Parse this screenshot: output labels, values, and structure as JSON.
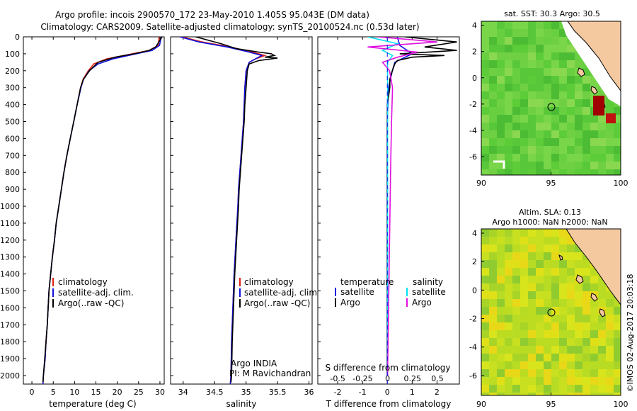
{
  "header": {
    "line1": "Argo profile: incois 2900570_172 23-May-2010 1.405S 95.043E (DM data)",
    "line2": "Climatology: CARS2009. Satellite-adjusted climatology: synTS_20100524.nc (0.53d later)"
  },
  "colors": {
    "clim": "#e02010",
    "sat": "#1010e0",
    "argo": "#000000",
    "sal_sat": "#00e0f0",
    "sal_argo": "#e010e0",
    "land": "#f5c9a0",
    "lowsst": "#a00000"
  },
  "legend1": [
    "climatology",
    "satellite-adj. clim.",
    "Argo(..raw -QC)"
  ],
  "legend2": [
    "climatology",
    "satellite-adj. clim.",
    "Argo(..raw -QC)"
  ],
  "legend3": {
    "temp_head": "temperature",
    "sal_head": "salinity",
    "t_sat": "satellite",
    "t_argo": "Argo",
    "s_sat": "satellite",
    "s_argo": "Argo"
  },
  "annot": {
    "float": "Argo INDIA",
    "pi": "PI: M Ravichandran"
  },
  "map1": {
    "title": "sat. SST: 30.3  Argo: 30.5"
  },
  "map2": {
    "title1": "Altim. SLA: 0.13",
    "title2": "Argo h1000: NaN h2000: NaN"
  },
  "credit": "©IMOS 02-Aug-2017 20:03:18",
  "chart_data": [
    {
      "type": "line",
      "xlabel": "temperature (deg C)",
      "xticks": [
        "0",
        "5",
        "10",
        "15",
        "20",
        "25",
        "30"
      ],
      "xlim": [
        -2,
        31
      ],
      "ylim": [
        2050,
        0
      ],
      "yticks": [
        "0",
        "100",
        "200",
        "300",
        "400",
        "500",
        "600",
        "700",
        "800",
        "900",
        "1000",
        "1100",
        "1200",
        "1300",
        "1400",
        "1500",
        "1600",
        "1700",
        "1800",
        "1900",
        "2000"
      ],
      "series": [
        {
          "name": "climatology",
          "pressure": [
            0,
            50,
            80,
            100,
            130,
            160,
            200,
            250,
            300,
            400,
            500,
            600,
            700,
            800,
            900,
            1000,
            1100,
            1200,
            1300,
            1400,
            1500,
            1600,
            1700,
            1800,
            1900,
            2000,
            2050
          ],
          "values": [
            29.8,
            29.6,
            27.5,
            23.5,
            17.5,
            14.5,
            13.2,
            12.0,
            11.4,
            10.6,
            9.8,
            9.0,
            8.2,
            7.5,
            6.9,
            6.3,
            5.7,
            5.3,
            4.8,
            4.4,
            4.0,
            3.8,
            3.6,
            3.3,
            3.1,
            2.7,
            2.6
          ]
        },
        {
          "name": "satellite-adj. clim.",
          "pressure": [
            0,
            50,
            80,
            100,
            130,
            160,
            200,
            250,
            300,
            400,
            500,
            600,
            700,
            800,
            900,
            1000,
            1100,
            1200,
            1300,
            1400,
            1500,
            1600,
            1700,
            1800,
            1900,
            2000,
            2050
          ],
          "values": [
            30.3,
            29.9,
            28.2,
            24.5,
            19.0,
            15.5,
            13.4,
            12.1,
            11.5,
            10.6,
            9.8,
            9.0,
            8.2,
            7.5,
            6.9,
            6.3,
            5.7,
            5.3,
            4.8,
            4.4,
            4.0,
            3.8,
            3.6,
            3.3,
            3.1,
            2.7,
            2.6
          ]
        },
        {
          "name": "Argo(..raw -QC)",
          "pressure": [
            0,
            20,
            40,
            60,
            80,
            100,
            120,
            150,
            200,
            250,
            300,
            400,
            500,
            600,
            700,
            800,
            900,
            1000,
            1100,
            1200,
            1300,
            1400,
            1500,
            1600,
            1700,
            1800,
            1900,
            2000,
            2040
          ],
          "values": [
            30.5,
            30.0,
            29.5,
            29.0,
            27.5,
            24.0,
            19.5,
            15.5,
            13.5,
            12.1,
            11.4,
            10.6,
            9.8,
            9.0,
            8.2,
            7.5,
            6.9,
            6.3,
            5.7,
            5.3,
            4.8,
            4.4,
            4.0,
            3.8,
            3.6,
            3.3,
            3.0,
            2.7,
            2.6
          ]
        }
      ]
    },
    {
      "type": "line",
      "xlabel": "salinity",
      "xticks": [
        "34",
        "34.5",
        "35",
        "35.5",
        "36"
      ],
      "xlim": [
        33.8,
        36.05
      ],
      "ylim": [
        2050,
        0
      ],
      "series": [
        {
          "name": "climatology",
          "pressure": [
            0,
            30,
            60,
            90,
            110,
            130,
            150,
            200,
            300,
            400,
            500,
            600,
            700,
            800,
            900,
            1000,
            1200,
            1400,
            1600,
            1800,
            2000,
            2050
          ],
          "values": [
            33.98,
            34.3,
            34.75,
            35.1,
            35.3,
            35.15,
            35.05,
            35.0,
            34.98,
            34.97,
            34.96,
            34.94,
            34.92,
            34.9,
            34.88,
            34.87,
            34.84,
            34.81,
            34.79,
            34.77,
            34.76,
            34.75
          ]
        },
        {
          "name": "satellite-adj. clim.",
          "pressure": [
            0,
            30,
            60,
            90,
            110,
            130,
            150,
            200,
            300,
            400,
            500,
            600,
            700,
            800,
            900,
            1000,
            1200,
            1400,
            1600,
            1800,
            2000,
            2050
          ],
          "values": [
            33.95,
            34.25,
            34.7,
            35.05,
            35.25,
            35.15,
            35.05,
            35.0,
            34.98,
            34.97,
            34.96,
            34.94,
            34.92,
            34.9,
            34.88,
            34.87,
            34.84,
            34.81,
            34.79,
            34.77,
            34.76,
            34.75
          ]
        },
        {
          "name": "Argo(..raw -QC)",
          "pressure": [
            0,
            40,
            70,
            90,
            100,
            110,
            120,
            125,
            140,
            160,
            200,
            300,
            400,
            500,
            600,
            700,
            800,
            900,
            1000,
            1200,
            1400,
            1600,
            1800,
            2000,
            2040
          ],
          "values": [
            34.2,
            34.6,
            34.85,
            35.2,
            35.4,
            35.45,
            35.3,
            35.5,
            35.2,
            35.05,
            35.02,
            35.0,
            34.98,
            34.97,
            34.95,
            34.93,
            34.91,
            34.89,
            34.88,
            34.85,
            34.82,
            34.8,
            34.78,
            34.77,
            34.76
          ]
        }
      ]
    },
    {
      "type": "line",
      "xlabel_bottom": "T difference from climatology",
      "xlabel_top": "S difference from climatology",
      "xticks_bottom": [
        "-2",
        "-1",
        "0",
        "1",
        "2"
      ],
      "xticks_top": [
        "-0.5",
        "-0.25",
        "0",
        "0.25",
        "0.5"
      ],
      "xlim_T": [
        -2.8,
        2.9
      ],
      "ylim": [
        2050,
        0
      ],
      "series": [
        {
          "name": "temperature satellite",
          "pressure": [
            0,
            50,
            100,
            150,
            200,
            300,
            500,
            800,
            1200,
            1600,
            2000
          ],
          "values": [
            0.4,
            0.5,
            1.0,
            0.3,
            0.2,
            0.05,
            0,
            0,
            0,
            0,
            0
          ]
        },
        {
          "name": "temperature Argo",
          "pressure": [
            0,
            30,
            60,
            80,
            100,
            110,
            120,
            140,
            160,
            200,
            250,
            300,
            400,
            500,
            700,
            1000,
            1500,
            2000
          ],
          "values": [
            0.7,
            2.8,
            1.5,
            2.8,
            0.5,
            2.3,
            1.0,
            0.4,
            0.3,
            0.2,
            0.1,
            0.1,
            0,
            0,
            0,
            0,
            0,
            0
          ]
        },
        {
          "name": "salinity satellite",
          "pressure": [
            0,
            40,
            80,
            110,
            150,
            200,
            300,
            500,
            800,
            1200,
            1600,
            2000
          ],
          "values": [
            -0.2,
            0.1,
            -0.05,
            0.05,
            0,
            0,
            0,
            0,
            0,
            0,
            0,
            0
          ]
        },
        {
          "name": "salinity Argo",
          "pressure": [
            0,
            30,
            60,
            90,
            120,
            150,
            200,
            300,
            500,
            800,
            1200,
            1600,
            2000
          ],
          "values": [
            -0.1,
            0.5,
            -0.2,
            0.3,
            0.1,
            -0.05,
            0.02,
            0.05,
            0.04,
            0.03,
            0.02,
            0.01,
            0.0
          ]
        }
      ]
    },
    {
      "type": "heatmap",
      "title": "sat. SST: 30.3  Argo: 30.5",
      "xticks": [
        "90",
        "95",
        "100"
      ],
      "yticks": [
        "4",
        "2",
        "0",
        "-2",
        "-4",
        "-6"
      ],
      "xlim": [
        90,
        100
      ],
      "ylim": [
        -7.4,
        4.3
      ],
      "argo_position": [
        95.043,
        -1.405
      ]
    },
    {
      "type": "heatmap",
      "title": "Altim. SLA: 0.13",
      "subtitle": "Argo h1000: NaN h2000: NaN",
      "xticks": [
        "90",
        "95",
        "100"
      ],
      "yticks": [
        "4",
        "2",
        "0",
        "-2",
        "-4",
        "-6"
      ],
      "xlim": [
        90,
        100
      ],
      "ylim": [
        -7.4,
        4.3
      ],
      "argo_position": [
        95.043,
        -1.405
      ]
    }
  ]
}
